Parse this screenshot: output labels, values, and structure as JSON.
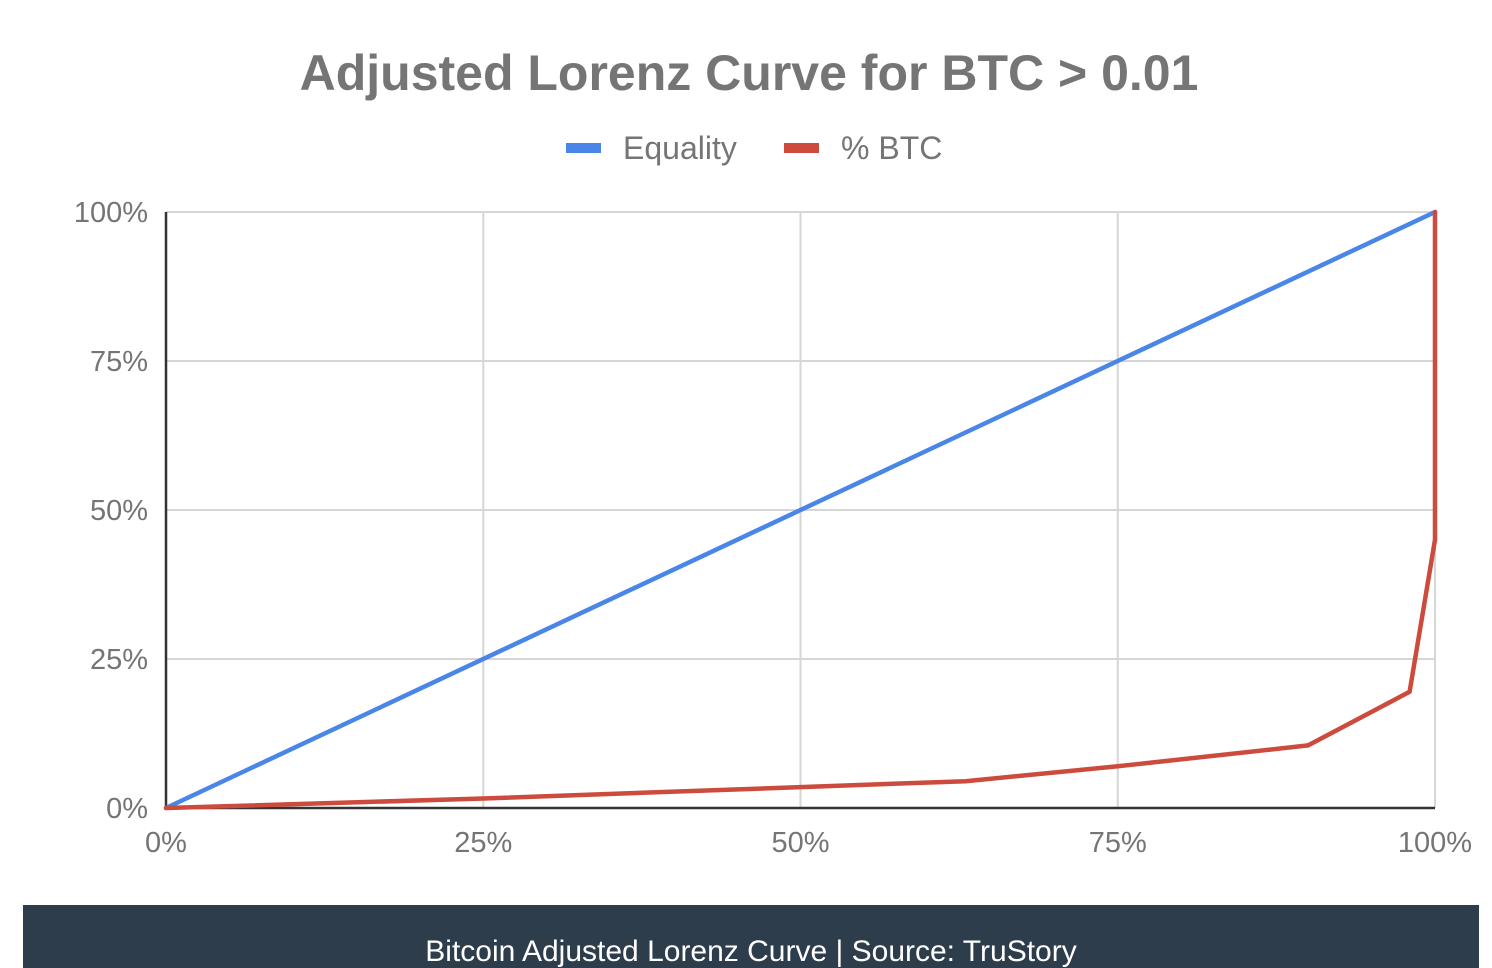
{
  "chart_data": {
    "type": "line",
    "title": "Adjusted Lorenz Curve for BTC > 0.01",
    "xlabel": "",
    "ylabel": "",
    "xlim": [
      0,
      100
    ],
    "ylim": [
      0,
      100
    ],
    "x_ticks": [
      "0%",
      "25%",
      "50%",
      "75%",
      "100%"
    ],
    "y_ticks": [
      "0%",
      "25%",
      "50%",
      "75%",
      "100%"
    ],
    "grid": true,
    "legend_position": "top",
    "series": [
      {
        "name": "Equality",
        "color": "#4a86e8",
        "x": [
          0,
          100
        ],
        "y": [
          0,
          100
        ]
      },
      {
        "name": "% BTC",
        "color": "#cc4b3c",
        "x": [
          0,
          25,
          50,
          63,
          75,
          90,
          98,
          100,
          100
        ],
        "y": [
          0,
          1.6,
          3.5,
          4.5,
          7,
          10.5,
          19.5,
          45,
          100
        ]
      }
    ]
  },
  "caption": {
    "text": "Bitcoin Adjusted Lorenz Curve | Source: TruStory",
    "background": "#2e3d4b"
  }
}
